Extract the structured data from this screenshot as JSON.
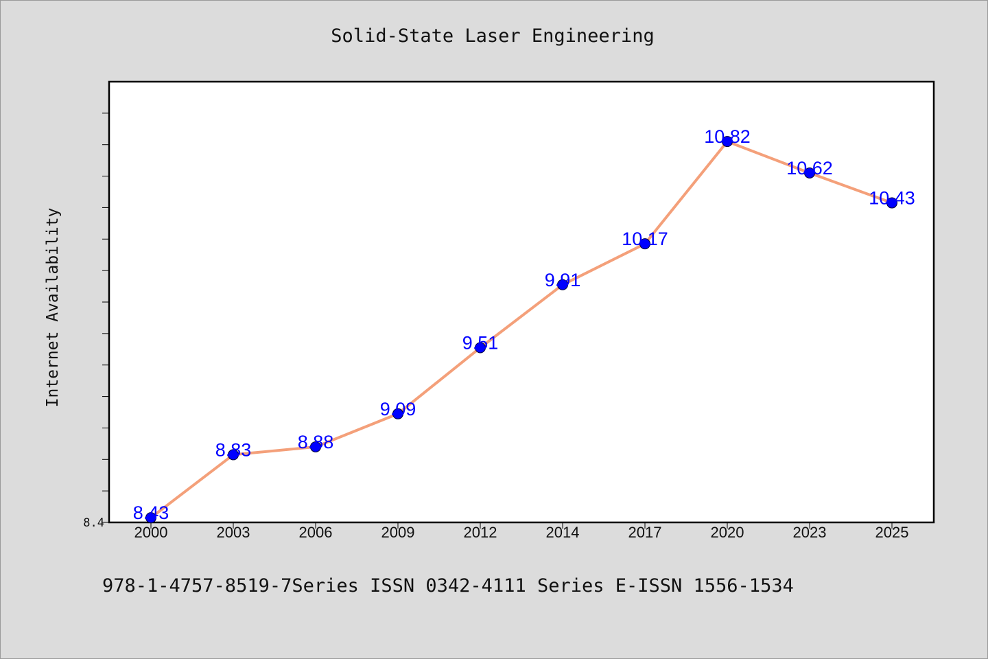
{
  "chart_data": {
    "type": "line",
    "title": "Solid-State Laser Engineering",
    "xlabel": "",
    "ylabel": "Internet Availability",
    "categories": [
      "2000",
      "2003",
      "2006",
      "2009",
      "2012",
      "2014",
      "2017",
      "2020",
      "2023",
      "2025"
    ],
    "series": [
      {
        "values": [
          8.43,
          8.83,
          8.88,
          9.09,
          9.51,
          9.91,
          10.17,
          10.82,
          10.62,
          10.43
        ],
        "labels": [
          "8.43",
          "8.83",
          "8.88",
          "9.09",
          "9.51",
          "9.91",
          "10.17",
          "10.82",
          "10.62",
          "10.43"
        ],
        "line_color": "#f4a07a",
        "marker_color": "#0000ff"
      }
    ],
    "ylim": [
      8.4,
      11.2
    ],
    "yticks_labeled": [
      {
        "value": 8.4,
        "label": "8.4"
      }
    ],
    "y_minor_tick_step": 0.2,
    "grid": false,
    "legend": "none"
  },
  "footer": {
    "text": "978-1-4757-8519-7Series ISSN 0342-4111 Series E-ISSN 1556-1534"
  }
}
